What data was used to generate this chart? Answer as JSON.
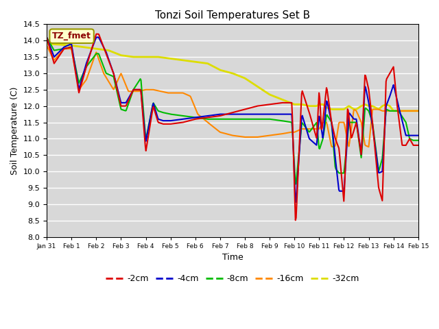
{
  "title": "Tonzi Soil Temperatures Set B",
  "xlabel": "Time",
  "ylabel": "Soil Temperature (C)",
  "ylim": [
    8.0,
    14.5
  ],
  "yticks": [
    8.0,
    8.5,
    9.0,
    9.5,
    10.0,
    10.5,
    11.0,
    11.5,
    12.0,
    12.5,
    13.0,
    13.5,
    14.0,
    14.5
  ],
  "bg_color": "#d8d8d8",
  "annotation_text": "TZ_fmet",
  "annotation_bg": "#ffffcc",
  "annotation_border": "#999900",
  "series": {
    "-2cm": {
      "color": "#dd0000",
      "lw": 1.5
    },
    "-4cm": {
      "color": "#0000cc",
      "lw": 1.5
    },
    "-8cm": {
      "color": "#00bb00",
      "lw": 1.5
    },
    "-16cm": {
      "color": "#ff8800",
      "lw": 1.5
    },
    "-32cm": {
      "color": "#dddd00",
      "lw": 2.0
    }
  },
  "xtick_labels": [
    "Jan 31",
    "Feb 1",
    "Feb 2",
    "Feb 3",
    "Feb 4",
    "Feb 5",
    "Feb 6",
    "Feb 7",
    "Feb 8",
    "Feb 9",
    "Feb 10",
    "Feb 11",
    "Feb 12",
    "Feb 13",
    "Feb 14",
    "Feb 15"
  ]
}
